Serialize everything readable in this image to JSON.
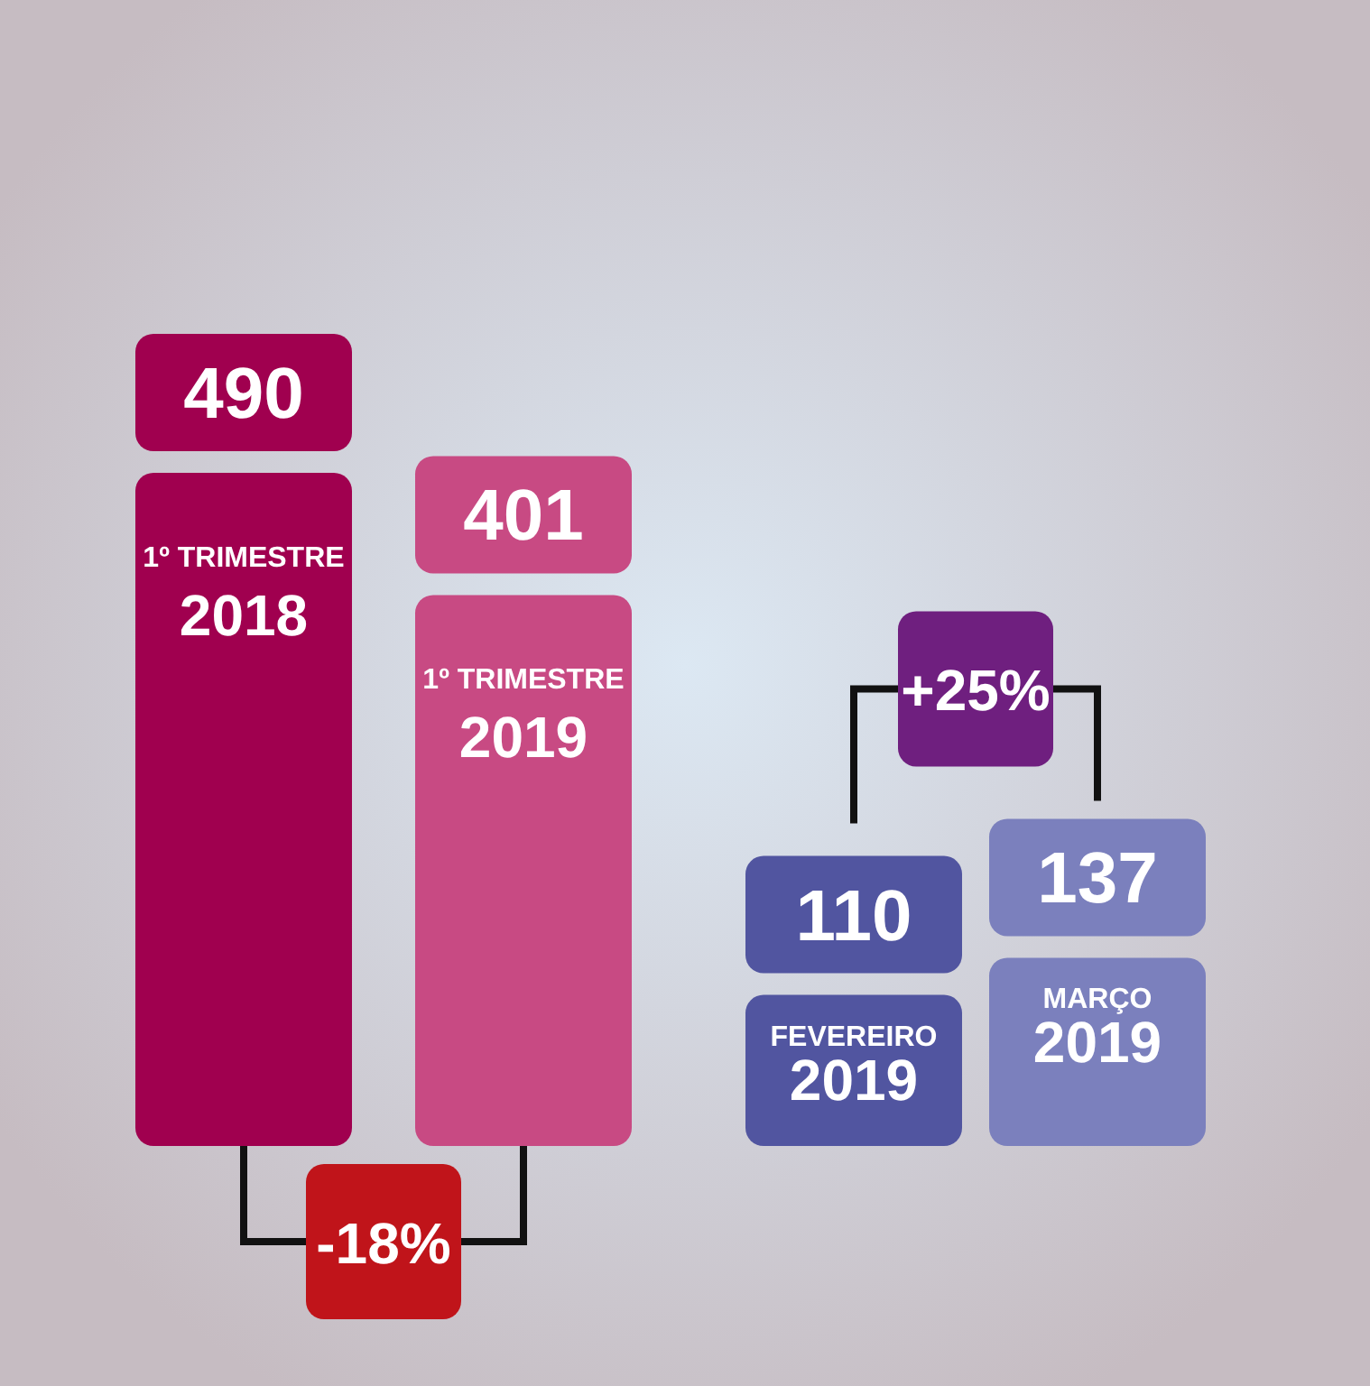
{
  "chart_data": {
    "type": "bar",
    "categories": [
      "1º TRIMESTRE 2018",
      "1º TRIMESTRE 2019",
      "FEVEREIRO 2019",
      "MARÇO 2019"
    ],
    "values": [
      490,
      401,
      110,
      137
    ],
    "colors": [
      "#a0004f",
      "#c84a83",
      "#5155a0",
      "#7b80bd"
    ],
    "data_labels": true,
    "annotations": [
      "-18%",
      "+25%"
    ]
  }
}
